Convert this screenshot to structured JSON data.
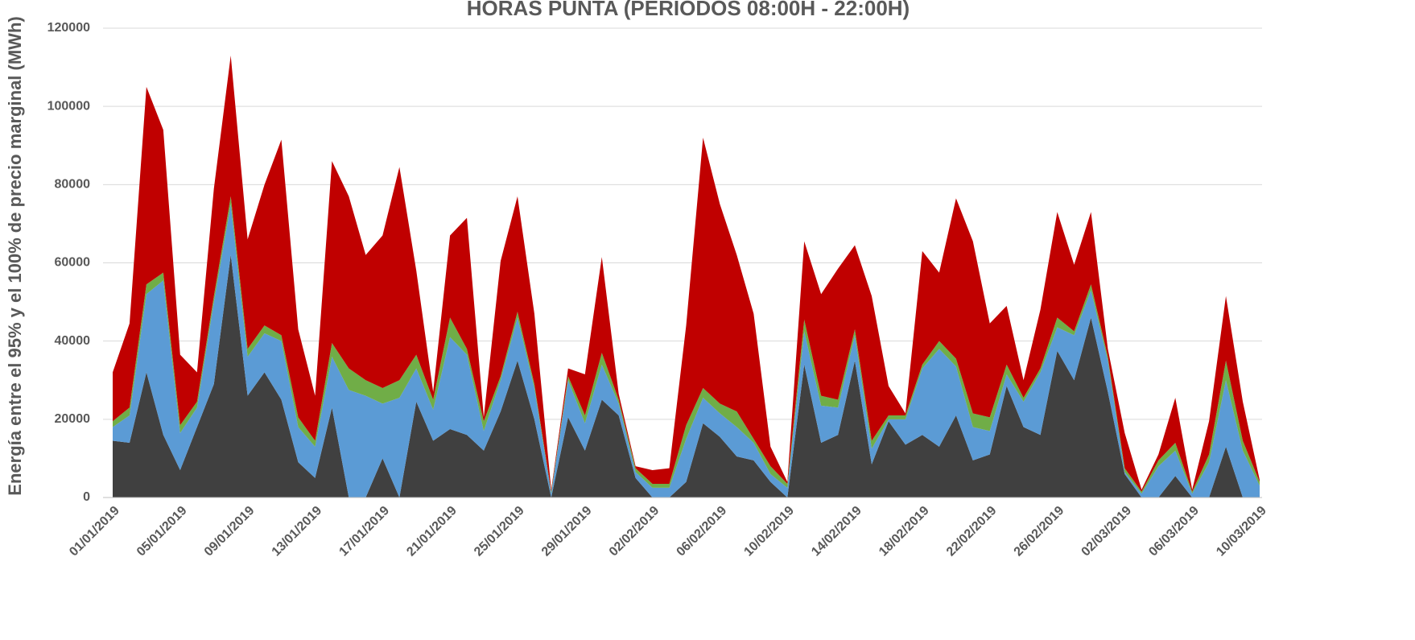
{
  "chart_data": {
    "type": "stacked_area",
    "title": "HORAS PUNTA (PERIODOS 08:00H - 22:00H)",
    "y_label": "Energía entre el 95% y el 100% de precio marginal (MWh)",
    "categories": [
      "01/01/2019",
      null,
      null,
      null,
      "05/01/2019",
      null,
      null,
      null,
      "09/01/2019",
      null,
      null,
      null,
      "13/01/2019",
      null,
      null,
      null,
      "17/01/2019",
      null,
      null,
      null,
      "21/01/2019",
      null,
      null,
      null,
      "25/01/2019",
      null,
      null,
      null,
      "29/01/2019",
      null,
      null,
      null,
      "02/02/2019",
      null,
      null,
      null,
      "06/02/2019",
      null,
      null,
      null,
      "10/02/2019",
      null,
      null,
      null,
      "14/02/2019",
      null,
      null,
      null,
      "18/02/2019",
      null,
      null,
      null,
      "22/02/2019",
      null,
      null,
      null,
      "26/02/2019",
      null,
      null,
      null,
      "02/03/2019",
      null,
      null,
      null,
      "06/03/2019",
      null,
      null,
      null,
      "10/03/2019"
    ],
    "series": [
      {
        "color": "#404040",
        "values": [
          14500,
          14000,
          32000,
          16000,
          7000,
          18000,
          29000,
          62000,
          26000,
          32000,
          25000,
          9000,
          5000,
          23000,
          0,
          0,
          10000,
          0,
          24500,
          14500,
          17500,
          16000,
          12000,
          22000,
          35000,
          20000,
          0,
          20500,
          12000,
          25000,
          21000,
          5000,
          0,
          0,
          4000,
          19000,
          15500,
          10500,
          9500,
          4000,
          0,
          34000,
          14000,
          16000,
          35000,
          8500,
          19500,
          13500,
          16000,
          13000,
          21000,
          9500,
          11000,
          28500,
          18000,
          16000,
          37500,
          30000,
          46000,
          27000,
          6000,
          0,
          0,
          5500,
          0,
          0,
          13000,
          0,
          0
        ]
      },
      {
        "color": "#5b9bd5",
        "values": [
          3500,
          7000,
          20000,
          39500,
          9500,
          5000,
          21000,
          13000,
          10000,
          10000,
          15000,
          9000,
          8000,
          13000,
          27500,
          26000,
          14000,
          25500,
          8500,
          8000,
          23500,
          20500,
          5000,
          8000,
          11000,
          8000,
          1000,
          9500,
          7000,
          9000,
          3000,
          1500,
          2500,
          2500,
          11000,
          6500,
          6000,
          7500,
          4500,
          2000,
          2500,
          8500,
          9500,
          7000,
          6500,
          4000,
          500,
          6500,
          17000,
          25000,
          12500,
          8500,
          6000,
          3000,
          6500,
          16000,
          6000,
          11500,
          7000,
          8000,
          500,
          1000,
          8000,
          6500,
          1000,
          9000,
          17000,
          12000,
          3000
        ]
      },
      {
        "color": "#70ad47",
        "values": [
          1500,
          2000,
          2500,
          2000,
          2000,
          1500,
          1500,
          2000,
          2000,
          2000,
          1500,
          2500,
          1500,
          3500,
          5500,
          4000,
          4000,
          4500,
          3500,
          2500,
          5000,
          1500,
          2500,
          1000,
          1500,
          1000,
          500,
          1000,
          2000,
          3000,
          1000,
          1000,
          1000,
          1000,
          3500,
          2500,
          2500,
          4000,
          1000,
          2000,
          1000,
          3000,
          2500,
          2000,
          1500,
          2000,
          1000,
          1000,
          1000,
          2000,
          2000,
          3500,
          3500,
          2500,
          1000,
          1000,
          2500,
          1000,
          1500,
          1000,
          1000,
          500,
          1500,
          2000,
          500,
          2000,
          5000,
          2500,
          1000
        ]
      },
      {
        "color": "#c00000",
        "values": [
          12500,
          21500,
          50500,
          36500,
          18000,
          7500,
          27500,
          36000,
          28000,
          36000,
          50000,
          22500,
          11500,
          46500,
          44000,
          32000,
          39000,
          54500,
          21500,
          2000,
          21000,
          33500,
          1000,
          29500,
          29500,
          18000,
          500,
          2000,
          10500,
          24500,
          1500,
          500,
          3500,
          4000,
          25500,
          64000,
          51000,
          40000,
          32000,
          5000,
          500,
          20000,
          26000,
          33500,
          21500,
          37000,
          7500,
          500,
          29000,
          17500,
          41000,
          44000,
          24000,
          15000,
          4500,
          15000,
          27000,
          17000,
          18500,
          2000,
          9000,
          500,
          1500,
          11500,
          500,
          8500,
          16500,
          10000,
          500
        ]
      }
    ],
    "ylim": [
      0,
      120000
    ],
    "yticks": [
      0,
      20000,
      40000,
      60000,
      80000,
      100000,
      120000
    ],
    "grid": true
  }
}
